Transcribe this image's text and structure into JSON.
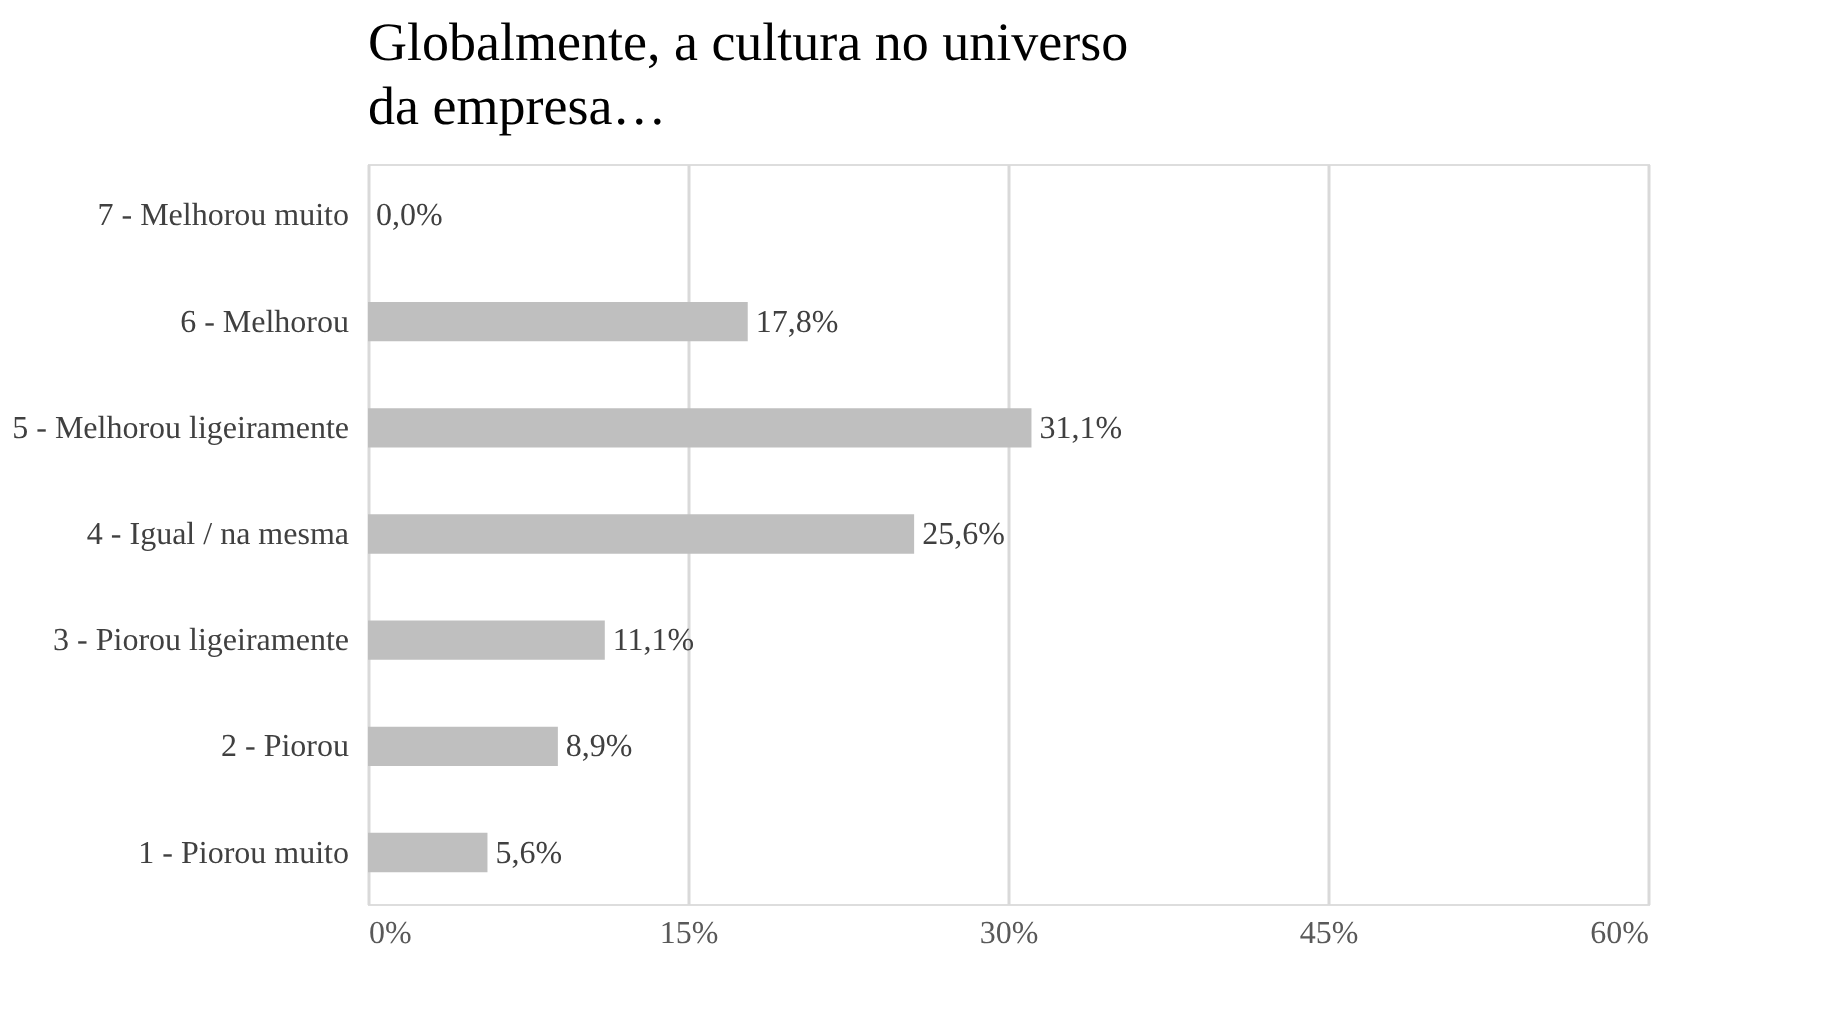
{
  "chart_data": {
    "type": "bar",
    "orientation": "horizontal",
    "title": "Globalmente, a cultura no universo da empresa…",
    "categories": [
      "7 - Melhorou muito",
      "6 - Melhorou",
      "5 - Melhorou ligeiramente",
      "4 - Igual / na mesma",
      "3 - Piorou ligeiramente",
      "2 - Piorou",
      "1 - Piorou muito"
    ],
    "values": [
      0.0,
      17.8,
      31.1,
      25.6,
      11.1,
      8.9,
      5.6
    ],
    "value_labels": [
      "0,0%",
      "17,8%",
      "31,1%",
      "25,6%",
      "11,1%",
      "8,9%",
      "5,6%"
    ],
    "color": "#bfbfbf",
    "xlim": [
      0,
      60
    ],
    "xticks": [
      {
        "value": 0,
        "label": "0%"
      },
      {
        "value": 15,
        "label": "15%"
      },
      {
        "value": 30,
        "label": "30%"
      },
      {
        "value": 45,
        "label": "45%"
      },
      {
        "value": 60,
        "label": "60%"
      }
    ],
    "grid": "x"
  }
}
